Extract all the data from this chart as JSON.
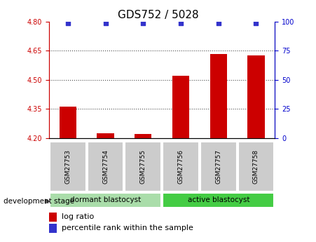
{
  "title": "GDS752 / 5028",
  "samples": [
    "GSM27753",
    "GSM27754",
    "GSM27755",
    "GSM27756",
    "GSM27757",
    "GSM27758"
  ],
  "log_ratio": [
    4.36,
    4.225,
    4.22,
    4.52,
    4.635,
    4.625
  ],
  "percentile_rank": [
    99,
    99,
    99,
    99,
    99,
    99
  ],
  "ylim_left": [
    4.2,
    4.8
  ],
  "ylim_right": [
    0,
    100
  ],
  "yticks_left": [
    4.2,
    4.35,
    4.5,
    4.65,
    4.8
  ],
  "yticks_right": [
    0,
    25,
    50,
    75,
    100
  ],
  "bar_color": "#cc0000",
  "dot_color": "#3333cc",
  "bar_width": 0.45,
  "groups": [
    {
      "label": "dormant blastocyst",
      "indices": [
        0,
        1,
        2
      ],
      "color": "#aaddaa"
    },
    {
      "label": "active blastocyst",
      "indices": [
        3,
        4,
        5
      ],
      "color": "#44cc44"
    }
  ],
  "group_label_text": "development stage",
  "legend_bar_label": "log ratio",
  "legend_dot_label": "percentile rank within the sample",
  "plot_bg_color": "#ffffff",
  "sample_cell_color": "#cccccc",
  "gridline_color": "#000000",
  "left_axis_color": "#cc0000",
  "right_axis_color": "#0000cc",
  "title_fontsize": 11,
  "tick_fontsize": 7,
  "legend_fontsize": 8
}
